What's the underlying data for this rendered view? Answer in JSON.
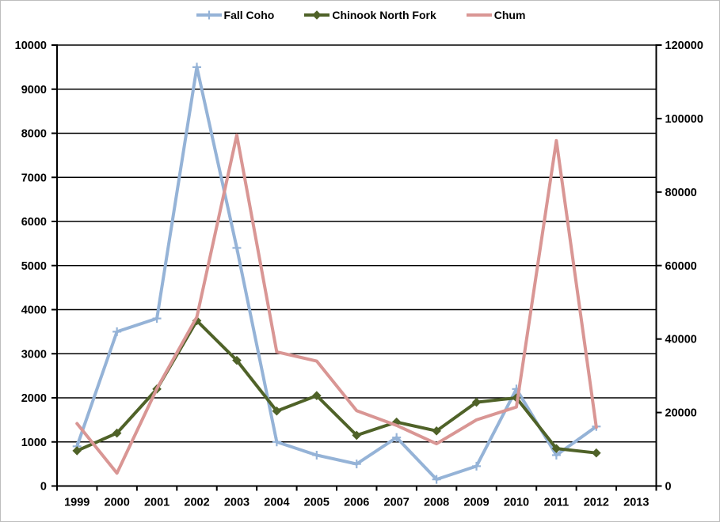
{
  "legend": [
    {
      "label": "Fall Coho",
      "color": "#95B3D7",
      "marker": "plus"
    },
    {
      "label": "Chinook North Fork",
      "color": "#4F6228",
      "marker": "diamond"
    },
    {
      "label": "Chum",
      "color": "#D99694",
      "marker": "none"
    }
  ],
  "chart_data": {
    "type": "line",
    "title": "",
    "xlabel": "",
    "ylabel": "",
    "categories": [
      "1999",
      "2000",
      "2001",
      "2002",
      "2003",
      "2004",
      "2005",
      "2006",
      "2007",
      "2008",
      "2009",
      "2010",
      "2011",
      "2012",
      "2013"
    ],
    "series": [
      {
        "name": "Fall Coho",
        "axis": "left",
        "color": "#95B3D7",
        "marker": "plus",
        "values": [
          900,
          3500,
          3800,
          9500,
          5400,
          1000,
          700,
          500,
          1100,
          150,
          450,
          2200,
          700,
          1350,
          null
        ]
      },
      {
        "name": "Chinook North Fork",
        "axis": "left",
        "color": "#4F6228",
        "marker": "diamond",
        "values": [
          800,
          1200,
          2200,
          3750,
          2850,
          1700,
          2050,
          1150,
          1450,
          1250,
          1900,
          2000,
          850,
          750,
          null
        ]
      },
      {
        "name": "Chum",
        "axis": "right",
        "color": "#D99694",
        "marker": "none",
        "values": [
          17000,
          3500,
          26500,
          46000,
          95500,
          36500,
          34000,
          20500,
          16500,
          11500,
          18000,
          21500,
          94000,
          16000,
          null
        ]
      }
    ],
    "left_axis": {
      "min": 0,
      "max": 10000,
      "step": 1000,
      "tick_labels": [
        "0",
        "1000",
        "2000",
        "3000",
        "4000",
        "5000",
        "6000",
        "7000",
        "8000",
        "9000",
        "10000"
      ]
    },
    "right_axis": {
      "min": 0,
      "max": 120000,
      "step": 20000,
      "tick_labels": [
        "0",
        "20000",
        "40000",
        "60000",
        "80000",
        "100000",
        "120000"
      ]
    },
    "grid": true,
    "gridline_color": "#000000",
    "axis_color": "#000000",
    "legend_position": "top",
    "plot_background": "#ffffff"
  }
}
